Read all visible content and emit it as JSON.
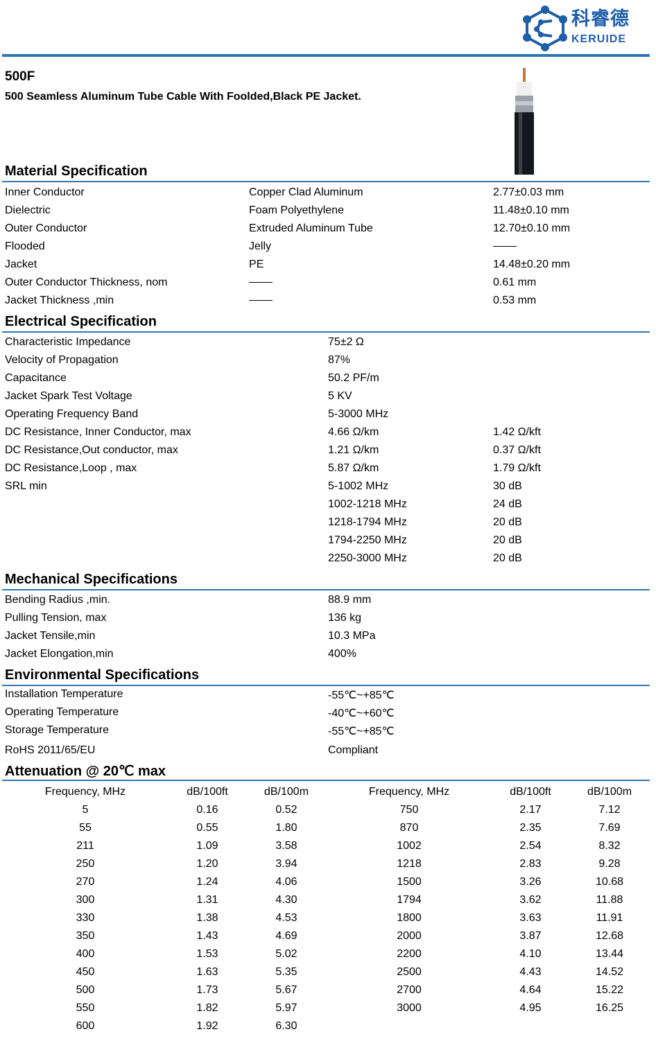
{
  "brand": {
    "name_cn": "科睿德",
    "name_en": "KERUIDE",
    "color": "#1f5fa8",
    "accent": "#2e75b6"
  },
  "product": {
    "model": "500F",
    "description": "500 Seamless Aluminum Tube Cable With Foolded,Black PE Jacket."
  },
  "material": {
    "title": "Material Specification",
    "rows": [
      [
        "Inner Conductor",
        "Copper Clad Aluminum",
        "2.77±0.03 mm"
      ],
      [
        "Dielectric",
        "Foam Polyethylene",
        "11.48±0.10 mm"
      ],
      [
        "Outer Conductor",
        "Extruded Aluminum Tube",
        "12.70±0.10 mm"
      ],
      [
        "Flooded",
        "Jelly",
        "——"
      ],
      [
        "Jacket",
        "PE",
        "14.48±0.20 mm"
      ],
      [
        "Outer Conductor Thickness, nom",
        "——",
        "0.61 mm"
      ],
      [
        "Jacket Thickness ,min",
        "——",
        "0.53 mm"
      ]
    ]
  },
  "electrical": {
    "title": "Electrical Specification",
    "rows": [
      [
        "Characteristic Impedance",
        "75±2 Ω",
        ""
      ],
      [
        "Velocity of Propagation",
        "87%",
        ""
      ],
      [
        "Capacitance",
        "50.2 PF/m",
        ""
      ],
      [
        "Jacket Spark Test Voltage",
        "5 KV",
        ""
      ],
      [
        "Operating Frequency Band",
        "5-3000 MHz",
        ""
      ],
      [
        "DC Resistance, Inner Conductor, max",
        "4.66 Ω/km",
        "1.42 Ω/kft"
      ],
      [
        "DC Resistance,Out conductor, max",
        "1.21 Ω/km",
        "0.37 Ω/kft"
      ],
      [
        "DC Resistance,Loop , max",
        "5.87 Ω/km",
        "1.79 Ω/kft"
      ],
      [
        "SRL min",
        "5-1002 MHz",
        "30 dB"
      ],
      [
        "",
        "1002-1218 MHz",
        "24 dB"
      ],
      [
        "",
        "1218-1794 MHz",
        "20 dB"
      ],
      [
        "",
        "1794-2250 MHz",
        "20 dB"
      ],
      [
        "",
        "2250-3000 MHz",
        "20 dB"
      ]
    ]
  },
  "mechanical": {
    "title": "Mechanical Specifications",
    "rows": [
      [
        "Bending Radius ,min.",
        "88.9 mm"
      ],
      [
        "Pulling Tension, max",
        "136 kg"
      ],
      [
        "Jacket Tensile,min",
        "10.3 MPa"
      ],
      [
        "Jacket Elongation,min",
        "400%"
      ]
    ]
  },
  "environmental": {
    "title": "Environmental Specifications",
    "rows": [
      [
        "Installation Temperature",
        "-55℃~+85℃"
      ],
      [
        "Operating Temperature",
        "-40℃~+60℃"
      ],
      [
        "Storage Temperature",
        "-55℃~+85℃"
      ],
      [
        "RoHS 2011/65/EU",
        "Compliant"
      ]
    ]
  },
  "attenuation": {
    "title": "Attenuation @ 20℃ max",
    "headers": [
      "Frequency, MHz",
      "dB/100ft",
      "dB/100m",
      "Frequency, MHz",
      "dB/100ft",
      "dB/100m"
    ],
    "rows": [
      [
        "5",
        "0.16",
        "0.52",
        "750",
        "2.17",
        "7.12"
      ],
      [
        "55",
        "0.55",
        "1.80",
        "870",
        "2.35",
        "7.69"
      ],
      [
        "211",
        "1.09",
        "3.58",
        "1002",
        "2.54",
        "8.32"
      ],
      [
        "250",
        "1.20",
        "3.94",
        "1218",
        "2.83",
        "9.28"
      ],
      [
        "270",
        "1.24",
        "4.06",
        "1500",
        "3.26",
        "10.68"
      ],
      [
        "300",
        "1.31",
        "4.30",
        "1794",
        "3.62",
        "11.88"
      ],
      [
        "330",
        "1.38",
        "4.53",
        "1800",
        "3.63",
        "11.91"
      ],
      [
        "350",
        "1.43",
        "4.69",
        "2000",
        "3.87",
        "12.68"
      ],
      [
        "400",
        "1.53",
        "5.02",
        "2200",
        "4.10",
        "13.44"
      ],
      [
        "450",
        "1.63",
        "5.35",
        "2500",
        "4.43",
        "14.52"
      ],
      [
        "500",
        "1.73",
        "5.67",
        "2700",
        "4.64",
        "15.22"
      ],
      [
        "550",
        "1.82",
        "5.97",
        "3000",
        "4.95",
        "16.25"
      ],
      [
        "600",
        "1.92",
        "6.30",
        "",
        "",
        ""
      ]
    ]
  }
}
